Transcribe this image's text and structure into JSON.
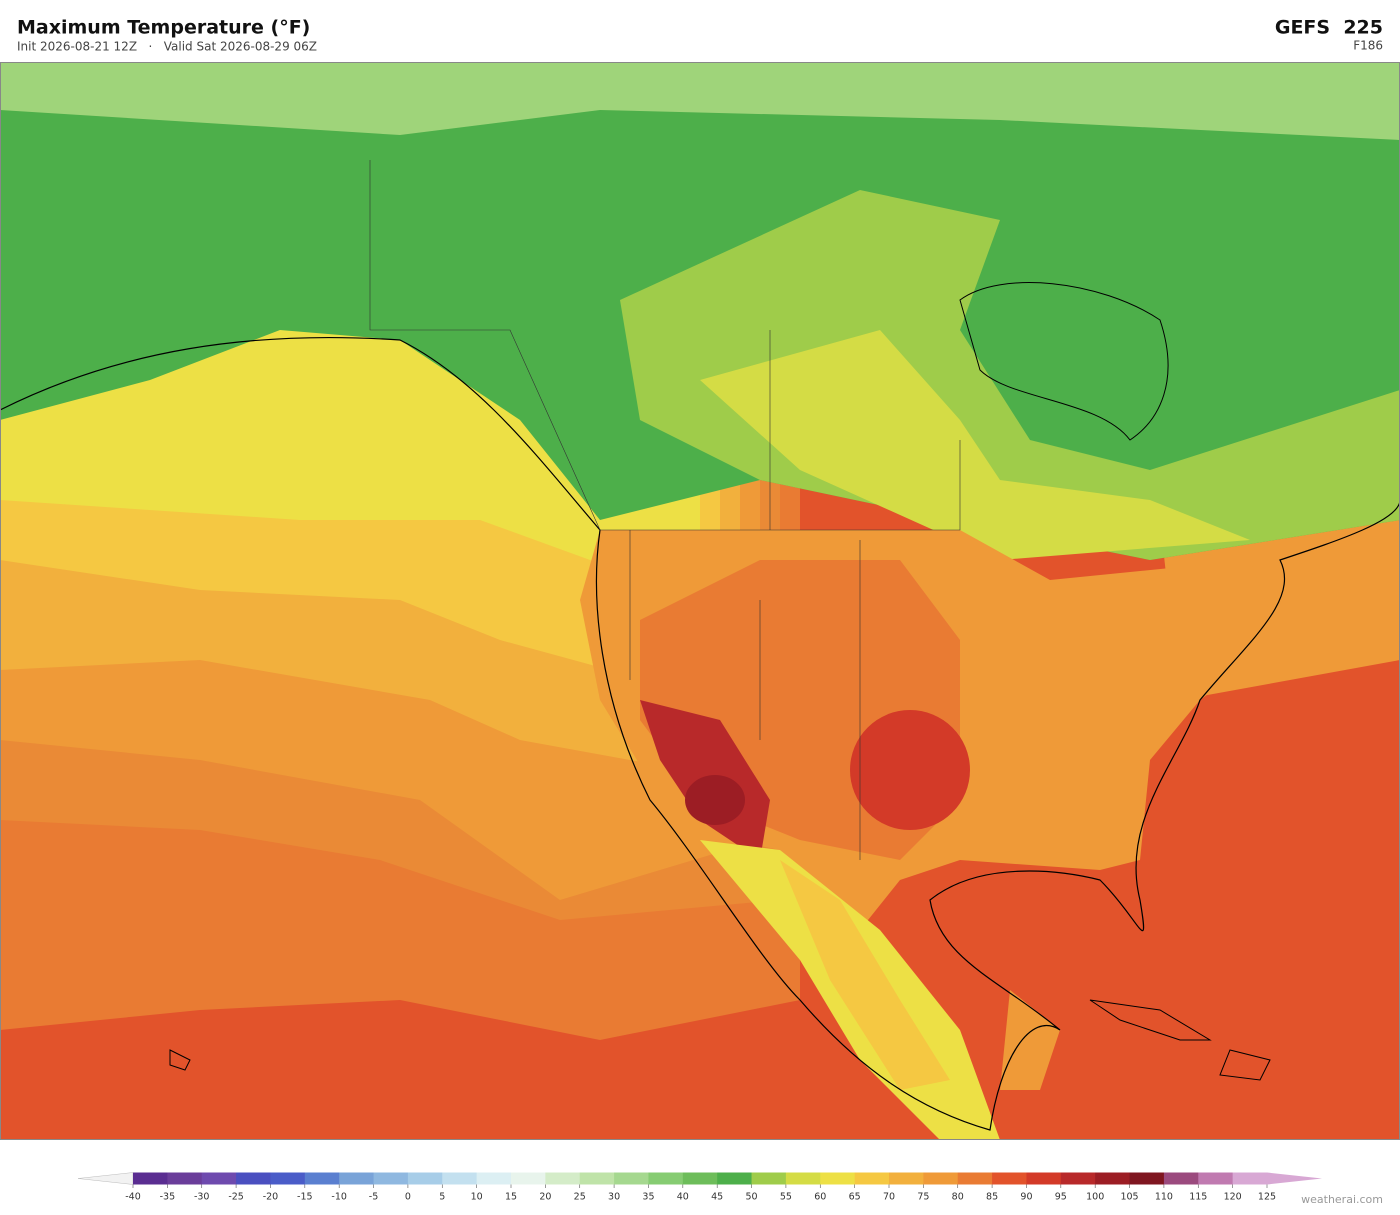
{
  "header": {
    "title": "Maximum Temperature  (°F)",
    "subtitle": "Init 2026-08-21 12Z   ·   Valid Sat 2026-08-29 06Z",
    "model": "GEFS  225",
    "forecast_hour": "F186"
  },
  "colorbar": {
    "ticks": [
      -40,
      -35,
      -30,
      -25,
      -20,
      -15,
      -10,
      -5,
      0,
      5,
      10,
      15,
      20,
      25,
      30,
      35,
      40,
      45,
      50,
      55,
      60,
      65,
      70,
      75,
      80,
      85,
      90,
      95,
      100,
      105,
      110,
      115,
      120,
      125
    ],
    "colors": [
      "#5a2d91",
      "#6a3d9a",
      "#6e4aae",
      "#4a4fc0",
      "#4a5cc8",
      "#5a7fd0",
      "#79a3d8",
      "#8fb8e0",
      "#a7cde8",
      "#c3e0ef",
      "#dceff3",
      "#e8f4ec",
      "#d4ecc8",
      "#bfe3a8",
      "#a5d88f",
      "#86cc72",
      "#6dbd5a",
      "#4daf4a",
      "#9fcc4a",
      "#d4dc45",
      "#ede045",
      "#f5c842",
      "#f2b03d",
      "#ef9a38",
      "#e97b33",
      "#e2532b",
      "#d33a28",
      "#b8292a",
      "#9c1d24",
      "#7f1620",
      "#9b4a7e",
      "#c07ab0",
      "#d8a8d4"
    ]
  },
  "footer": {
    "credit": "weatherai.com"
  }
}
